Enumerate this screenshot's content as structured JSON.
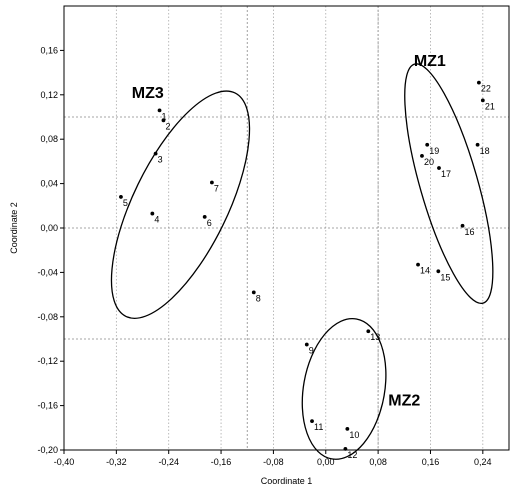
{
  "chart_data": {
    "type": "scatter",
    "xlabel": "Coordinate 1",
    "ylabel": "Coordinate 2",
    "xlim": [
      -0.4,
      0.28
    ],
    "ylim": [
      -0.2,
      0.2
    ],
    "x_ticks": [
      -0.4,
      -0.32,
      -0.24,
      -0.16,
      -0.08,
      0.0,
      0.08,
      0.16,
      0.24
    ],
    "x_tick_labels": [
      "-0,40",
      "-0,32",
      "-0,24",
      "-0,16",
      "-0,08",
      "0,00",
      "0,08",
      "0,16",
      "0,24"
    ],
    "y_ticks": [
      -0.2,
      -0.16,
      -0.12,
      -0.08,
      -0.04,
      0.0,
      0.04,
      0.08,
      0.12,
      0.16
    ],
    "y_tick_labels": [
      "-0,20",
      "-0,16",
      "-0,12",
      "-0,08",
      "-0,04",
      "0,00",
      "0,04",
      "0,08",
      "0,12",
      "0,16"
    ],
    "grid": true,
    "reference_lines_x": [
      -0.12,
      0.08
    ],
    "reference_lines_y": [
      -0.1,
      0.1
    ],
    "points": [
      {
        "label": "1",
        "x": -0.254,
        "y": 0.106
      },
      {
        "label": "2",
        "x": -0.248,
        "y": 0.097
      },
      {
        "label": "3",
        "x": -0.26,
        "y": 0.067
      },
      {
        "label": "4",
        "x": -0.265,
        "y": 0.013
      },
      {
        "label": "5",
        "x": -0.313,
        "y": 0.028
      },
      {
        "label": "6",
        "x": -0.185,
        "y": 0.01
      },
      {
        "label": "7",
        "x": -0.174,
        "y": 0.041
      },
      {
        "label": "8",
        "x": -0.11,
        "y": -0.058
      },
      {
        "label": "9",
        "x": -0.029,
        "y": -0.105
      },
      {
        "label": "10",
        "x": 0.033,
        "y": -0.181
      },
      {
        "label": "11",
        "x": -0.021,
        "y": -0.174
      },
      {
        "label": "12",
        "x": 0.03,
        "y": -0.199
      },
      {
        "label": "13",
        "x": 0.065,
        "y": -0.093
      },
      {
        "label": "14",
        "x": 0.141,
        "y": -0.033
      },
      {
        "label": "15",
        "x": 0.172,
        "y": -0.039
      },
      {
        "label": "16",
        "x": 0.209,
        "y": 0.002
      },
      {
        "label": "17",
        "x": 0.173,
        "y": 0.054
      },
      {
        "label": "18",
        "x": 0.232,
        "y": 0.075
      },
      {
        "label": "19",
        "x": 0.155,
        "y": 0.075
      },
      {
        "label": "20",
        "x": 0.147,
        "y": 0.065
      },
      {
        "label": "21",
        "x": 0.24,
        "y": 0.115
      },
      {
        "label": "22",
        "x": 0.234,
        "y": 0.131
      }
    ],
    "clusters": [
      {
        "name": "MZ1",
        "cx": 0.188,
        "cy": 0.04,
        "rx": 0.044,
        "ry": 0.112,
        "angle": 16
      },
      {
        "name": "MZ2",
        "cx": 0.028,
        "cy": -0.145,
        "rx": 0.062,
        "ry": 0.064,
        "angle": -10
      },
      {
        "name": "MZ3",
        "cx": -0.222,
        "cy": 0.021,
        "rx": 0.072,
        "ry": 0.112,
        "angle": -26
      }
    ]
  }
}
